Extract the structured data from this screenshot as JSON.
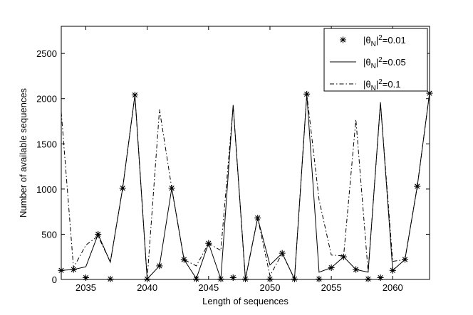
{
  "chart_data": {
    "type": "line",
    "xlabel": "Length of sequences",
    "ylabel": "Number of available sequences",
    "xlim": [
      2033,
      2063
    ],
    "ylim": [
      0,
      2800
    ],
    "xticks": [
      2035,
      2040,
      2045,
      2050,
      2055,
      2060
    ],
    "yticks": [
      0,
      500,
      1000,
      1500,
      2000,
      2500
    ],
    "legend_position": "top-right",
    "grid": false,
    "x": [
      2033,
      2034,
      2035,
      2036,
      2037,
      2038,
      2039,
      2040,
      2041,
      2042,
      2043,
      2044,
      2045,
      2046,
      2047,
      2048,
      2049,
      2050,
      2051,
      2052,
      2053,
      2054,
      2055,
      2056,
      2057,
      2058,
      2059,
      2060,
      2061,
      2062,
      2063
    ],
    "series": [
      {
        "name_pre": "|θ",
        "name_sub": "N",
        "name_mid": "|",
        "name_sup": "2",
        "name_post": "=0.01",
        "style": "asterisk",
        "values": [
          100,
          110,
          20,
          500,
          5,
          1010,
          2040,
          5,
          150,
          1010,
          220,
          5,
          400,
          5,
          20,
          5,
          680,
          5,
          290,
          5,
          2050,
          5,
          130,
          250,
          110,
          5,
          20,
          100,
          220,
          1030,
          2060
        ]
      },
      {
        "name_pre": "|θ",
        "name_sub": "N",
        "name_mid": "|",
        "name_sup": "2",
        "name_post": "=0.05",
        "style": "solid",
        "values": [
          100,
          110,
          140,
          500,
          190,
          1010,
          2040,
          5,
          150,
          1010,
          220,
          10,
          400,
          5,
          1930,
          5,
          680,
          160,
          290,
          5,
          2050,
          80,
          130,
          250,
          110,
          80,
          1960,
          100,
          220,
          1030,
          2060
        ]
      },
      {
        "name_pre": "|θ",
        "name_sub": "N",
        "name_mid": "|",
        "name_sup": "2",
        "name_post": "=0.1",
        "style": "dashdot",
        "values": [
          1850,
          130,
          380,
          480,
          190,
          1010,
          2040,
          5,
          1880,
          1010,
          220,
          150,
          400,
          320,
          1920,
          5,
          680,
          40,
          290,
          5,
          2050,
          880,
          270,
          260,
          1770,
          80,
          1950,
          200,
          220,
          1030,
          2060
        ]
      }
    ]
  }
}
